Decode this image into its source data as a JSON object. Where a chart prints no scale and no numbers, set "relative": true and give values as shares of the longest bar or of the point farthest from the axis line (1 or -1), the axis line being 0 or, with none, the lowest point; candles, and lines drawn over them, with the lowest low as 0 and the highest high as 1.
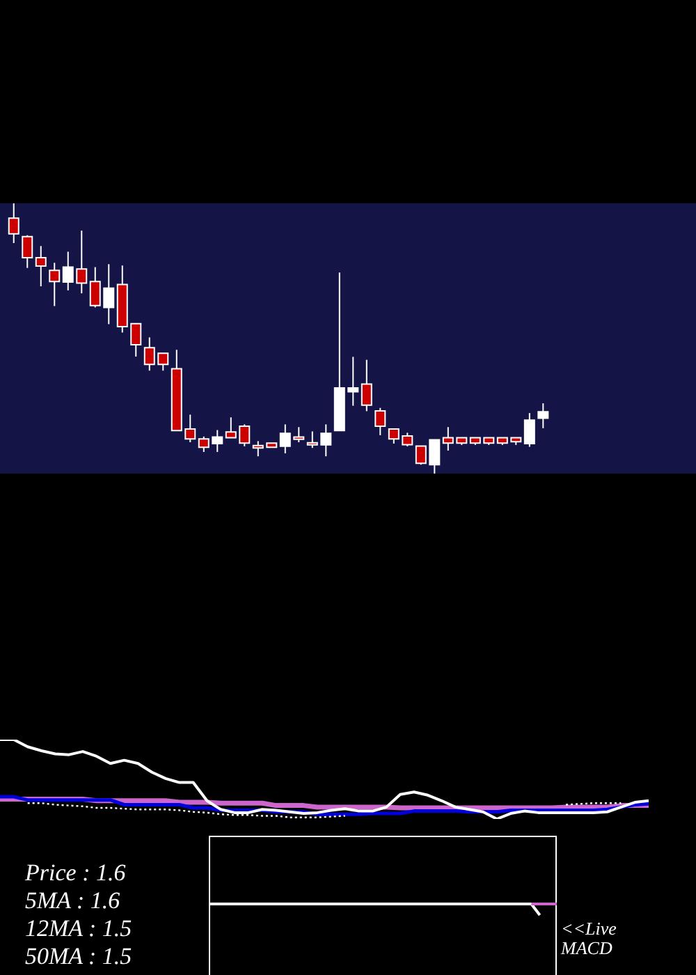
{
  "chart_data": [
    {
      "type": "candlestick",
      "relative": true,
      "categories": [
        null,
        null,
        null,
        null,
        null,
        null,
        null,
        null,
        null,
        null,
        null,
        null,
        null,
        null,
        null,
        null,
        null,
        null,
        null,
        null,
        null,
        null,
        null,
        null,
        null,
        null,
        null,
        null,
        null,
        null,
        null,
        null,
        null,
        null,
        null,
        null,
        null,
        null,
        null,
        null
      ],
      "ohlc": [
        [
          0.945,
          1,
          0.853,
          0.887
        ],
        [
          0.877,
          0.882,
          0.761,
          0.799
        ],
        [
          0.799,
          0.842,
          0.693,
          0.768
        ],
        [
          0.752,
          0.78,
          0.62,
          0.711
        ],
        [
          0.709,
          0.821,
          0.678,
          0.764
        ],
        [
          0.757,
          0.899,
          0.667,
          0.705
        ],
        [
          0.711,
          0.764,
          0.615,
          0.622
        ],
        [
          0.615,
          0.775,
          0.553,
          0.686
        ],
        [
          0.7,
          0.77,
          0.522,
          0.544
        ],
        [
          0.555,
          0.555,
          0.433,
          0.477
        ],
        [
          0.466,
          0.504,
          0.381,
          0.404
        ],
        [
          0.445,
          0.445,
          0.381,
          0.404
        ],
        [
          0.388,
          0.458,
          0.159,
          0.159
        ],
        [
          0.165,
          0.218,
          0.116,
          0.128
        ],
        [
          0.128,
          0.137,
          0.08,
          0.097
        ],
        [
          0.111,
          0.161,
          0.08,
          0.135
        ],
        [
          0.154,
          0.208,
          0.133,
          0.133
        ],
        [
          0.175,
          0.182,
          0.101,
          0.113
        ],
        [
          0.104,
          0.12,
          0.064,
          0.095
        ],
        [
          0.113,
          0.113,
          0.097,
          0.097
        ],
        [
          0.101,
          0.182,
          0.075,
          0.149
        ],
        [
          0.135,
          0.172,
          0.116,
          0.127
        ],
        [
          0.114,
          0.156,
          0.095,
          0.106
        ],
        [
          0.106,
          0.182,
          0.064,
          0.149
        ],
        [
          0.159,
          0.744,
          0.159,
          0.317
        ],
        [
          0.303,
          0.432,
          0.251,
          0.317
        ],
        [
          0.331,
          0.421,
          0.231,
          0.253
        ],
        [
          0.232,
          0.243,
          0.142,
          0.175
        ],
        [
          0.165,
          0.165,
          0.111,
          0.128
        ],
        [
          0.139,
          0.151,
          0.101,
          0.107
        ],
        [
          0.102,
          0.102,
          0.033,
          0.038
        ],
        [
          0.033,
          0.125,
          0,
          0.125
        ],
        [
          0.133,
          0.172,
          0.085,
          0.113
        ],
        [
          0.133,
          0.133,
          0.106,
          0.113
        ],
        [
          0.133,
          0.133,
          0.106,
          0.113
        ],
        [
          0.133,
          0.133,
          0.106,
          0.113
        ],
        [
          0.133,
          0.133,
          0.106,
          0.113
        ],
        [
          0.133,
          0.133,
          0.106,
          0.118
        ],
        [
          0.111,
          0.224,
          0.099,
          0.198
        ],
        [
          0.205,
          0.26,
          0.168,
          0.229
        ]
      ],
      "colors": [
        "#cc0000",
        "#cc0000",
        "#cc0000",
        "#cc0000",
        "#ffffff",
        "#cc0000",
        "#cc0000",
        "#ffffff",
        "#cc0000",
        "#cc0000",
        "#cc0000",
        "#cc0000",
        "#cc0000",
        "#cc0000",
        "#cc0000",
        "#ffffff",
        "#cc0000",
        "#cc0000",
        "#cc0000",
        "#cc0000",
        "#ffffff",
        "#cc0000",
        "#cc0000",
        "#ffffff",
        "#ffffff",
        "#ffffff",
        "#cc0000",
        "#cc0000",
        "#cc0000",
        "#cc0000",
        "#cc0000",
        "#ffffff",
        "#cc0000",
        "#cc0000",
        "#cc0000",
        "#cc0000",
        "#cc0000",
        "#cc0000",
        "#ffffff",
        "#ffffff"
      ]
    },
    {
      "type": "line",
      "relative": true,
      "categories": [
        null,
        null,
        null,
        null,
        null,
        null,
        null,
        null,
        null,
        null,
        null,
        null,
        null,
        null,
        null,
        null,
        null,
        null,
        null,
        null,
        null,
        null,
        null,
        null,
        null,
        null,
        null,
        null,
        null,
        null,
        null,
        null,
        null,
        null,
        null,
        null,
        null,
        null,
        null,
        null,
        null,
        null,
        null,
        null,
        null,
        null,
        null,
        null
      ],
      "series": [
        {
          "color": "#cc66cc",
          "values": [
            0.25,
            0.25,
            0.25,
            0.25,
            0.25,
            0.25,
            0.25,
            0.23,
            0.23,
            0.23,
            0.23,
            0.23,
            0.23,
            0.21,
            0.21,
            0.21,
            0.2,
            0.2,
            0.2,
            0.2,
            0.17,
            0.17,
            0.17,
            0.15,
            0.15,
            0.15,
            0.15,
            0.15,
            0.15,
            0.14,
            0.14,
            0.14,
            0.14,
            0.14,
            0.14,
            0.14,
            0.14,
            0.14,
            0.14,
            0.14,
            0.14,
            0.15,
            0.15,
            0.15,
            0.15,
            0.17,
            0.17,
            0.17
          ]
        },
        {
          "color": "#0000dd",
          "values": [
            0.28,
            0.28,
            0.24,
            0.24,
            0.24,
            0.24,
            0.24,
            0.24,
            0.24,
            0.18,
            0.18,
            0.18,
            0.18,
            0.18,
            0.14,
            0.14,
            0.11,
            0.11,
            0.11,
            0.11,
            0.09,
            0.09,
            0.09,
            0.06,
            0.06,
            0.06,
            0.06,
            0.07,
            0.07,
            0.07,
            0.1,
            0.1,
            0.1,
            0.1,
            0.09,
            0.09,
            0.09,
            0.11,
            0.11,
            0.11,
            0.11,
            0.11,
            0.11,
            0.11,
            0.12,
            0.15,
            0.18,
            0.19
          ]
        },
        {
          "color": "#ffffff",
          "line_style": "dotted",
          "values": [
            null,
            null,
            0.2,
            0.2,
            0.18,
            0.17,
            0.16,
            0.14,
            0.14,
            0.13,
            0.12,
            0.12,
            0.12,
            0.11,
            0.09,
            0.08,
            0.06,
            0.05,
            0.05,
            0.04,
            0.04,
            0.02,
            0.02,
            0.02,
            0.03,
            0.04,
            null,
            null,
            null,
            null,
            null,
            null,
            null,
            null,
            null,
            null,
            null,
            null,
            null,
            null,
            null,
            0.18,
            0.19,
            0.2,
            0.2,
            0.2,
            null,
            null
          ]
        },
        {
          "color": "#ffffff",
          "values": [
            1,
            1,
            0.91,
            0.86,
            0.82,
            0.81,
            0.85,
            0.79,
            0.7,
            0.74,
            0.7,
            0.59,
            0.51,
            0.46,
            0.46,
            0.23,
            0.12,
            0.08,
            0.08,
            0.12,
            0.11,
            0.09,
            0.07,
            0.08,
            0.11,
            0.13,
            0.1,
            0.1,
            0.15,
            0.31,
            0.34,
            0.3,
            0.23,
            0.15,
            0.12,
            0.09,
            0,
            0.07,
            0.1,
            0.08,
            0.08,
            0.08,
            0.08,
            0.08,
            0.09,
            0.15,
            0.21,
            0.23
          ]
        }
      ]
    },
    {
      "type": "other",
      "annotations": [
        "Price : 1.6",
        "5MA : 1.6",
        "12MA : 1.5",
        "50MA : 1.5"
      ]
    },
    {
      "type": "line",
      "relative": true,
      "categories": [
        null,
        null,
        null,
        null,
        null,
        null,
        null,
        null,
        null,
        null,
        null,
        null,
        null,
        null,
        null,
        null,
        null,
        null,
        null,
        null,
        null,
        null,
        null,
        null,
        null,
        null,
        null,
        null,
        null,
        null,
        null,
        null,
        null,
        null,
        null,
        null,
        null,
        null,
        null,
        null,
        null,
        null
      ],
      "series": [
        {
          "color": "#ffffff",
          "values": [
            1,
            1,
            1,
            1,
            1,
            1,
            1,
            1,
            1,
            1,
            1,
            1,
            1,
            1,
            1,
            1,
            1,
            1,
            1,
            1,
            1,
            1,
            1,
            1,
            1,
            1,
            1,
            1,
            1,
            1,
            1,
            1,
            1,
            1,
            1,
            1,
            1,
            1,
            1,
            0,
            null,
            null
          ]
        },
        {
          "color": "#cc66cc",
          "values": [
            null,
            null,
            null,
            null,
            null,
            null,
            null,
            null,
            null,
            null,
            null,
            null,
            null,
            null,
            null,
            null,
            null,
            null,
            null,
            null,
            null,
            null,
            null,
            null,
            null,
            null,
            null,
            null,
            null,
            null,
            null,
            null,
            null,
            null,
            null,
            null,
            null,
            null,
            1,
            1,
            1,
            1
          ]
        }
      ],
      "annotations": [
        "<<Live MACD"
      ]
    }
  ]
}
